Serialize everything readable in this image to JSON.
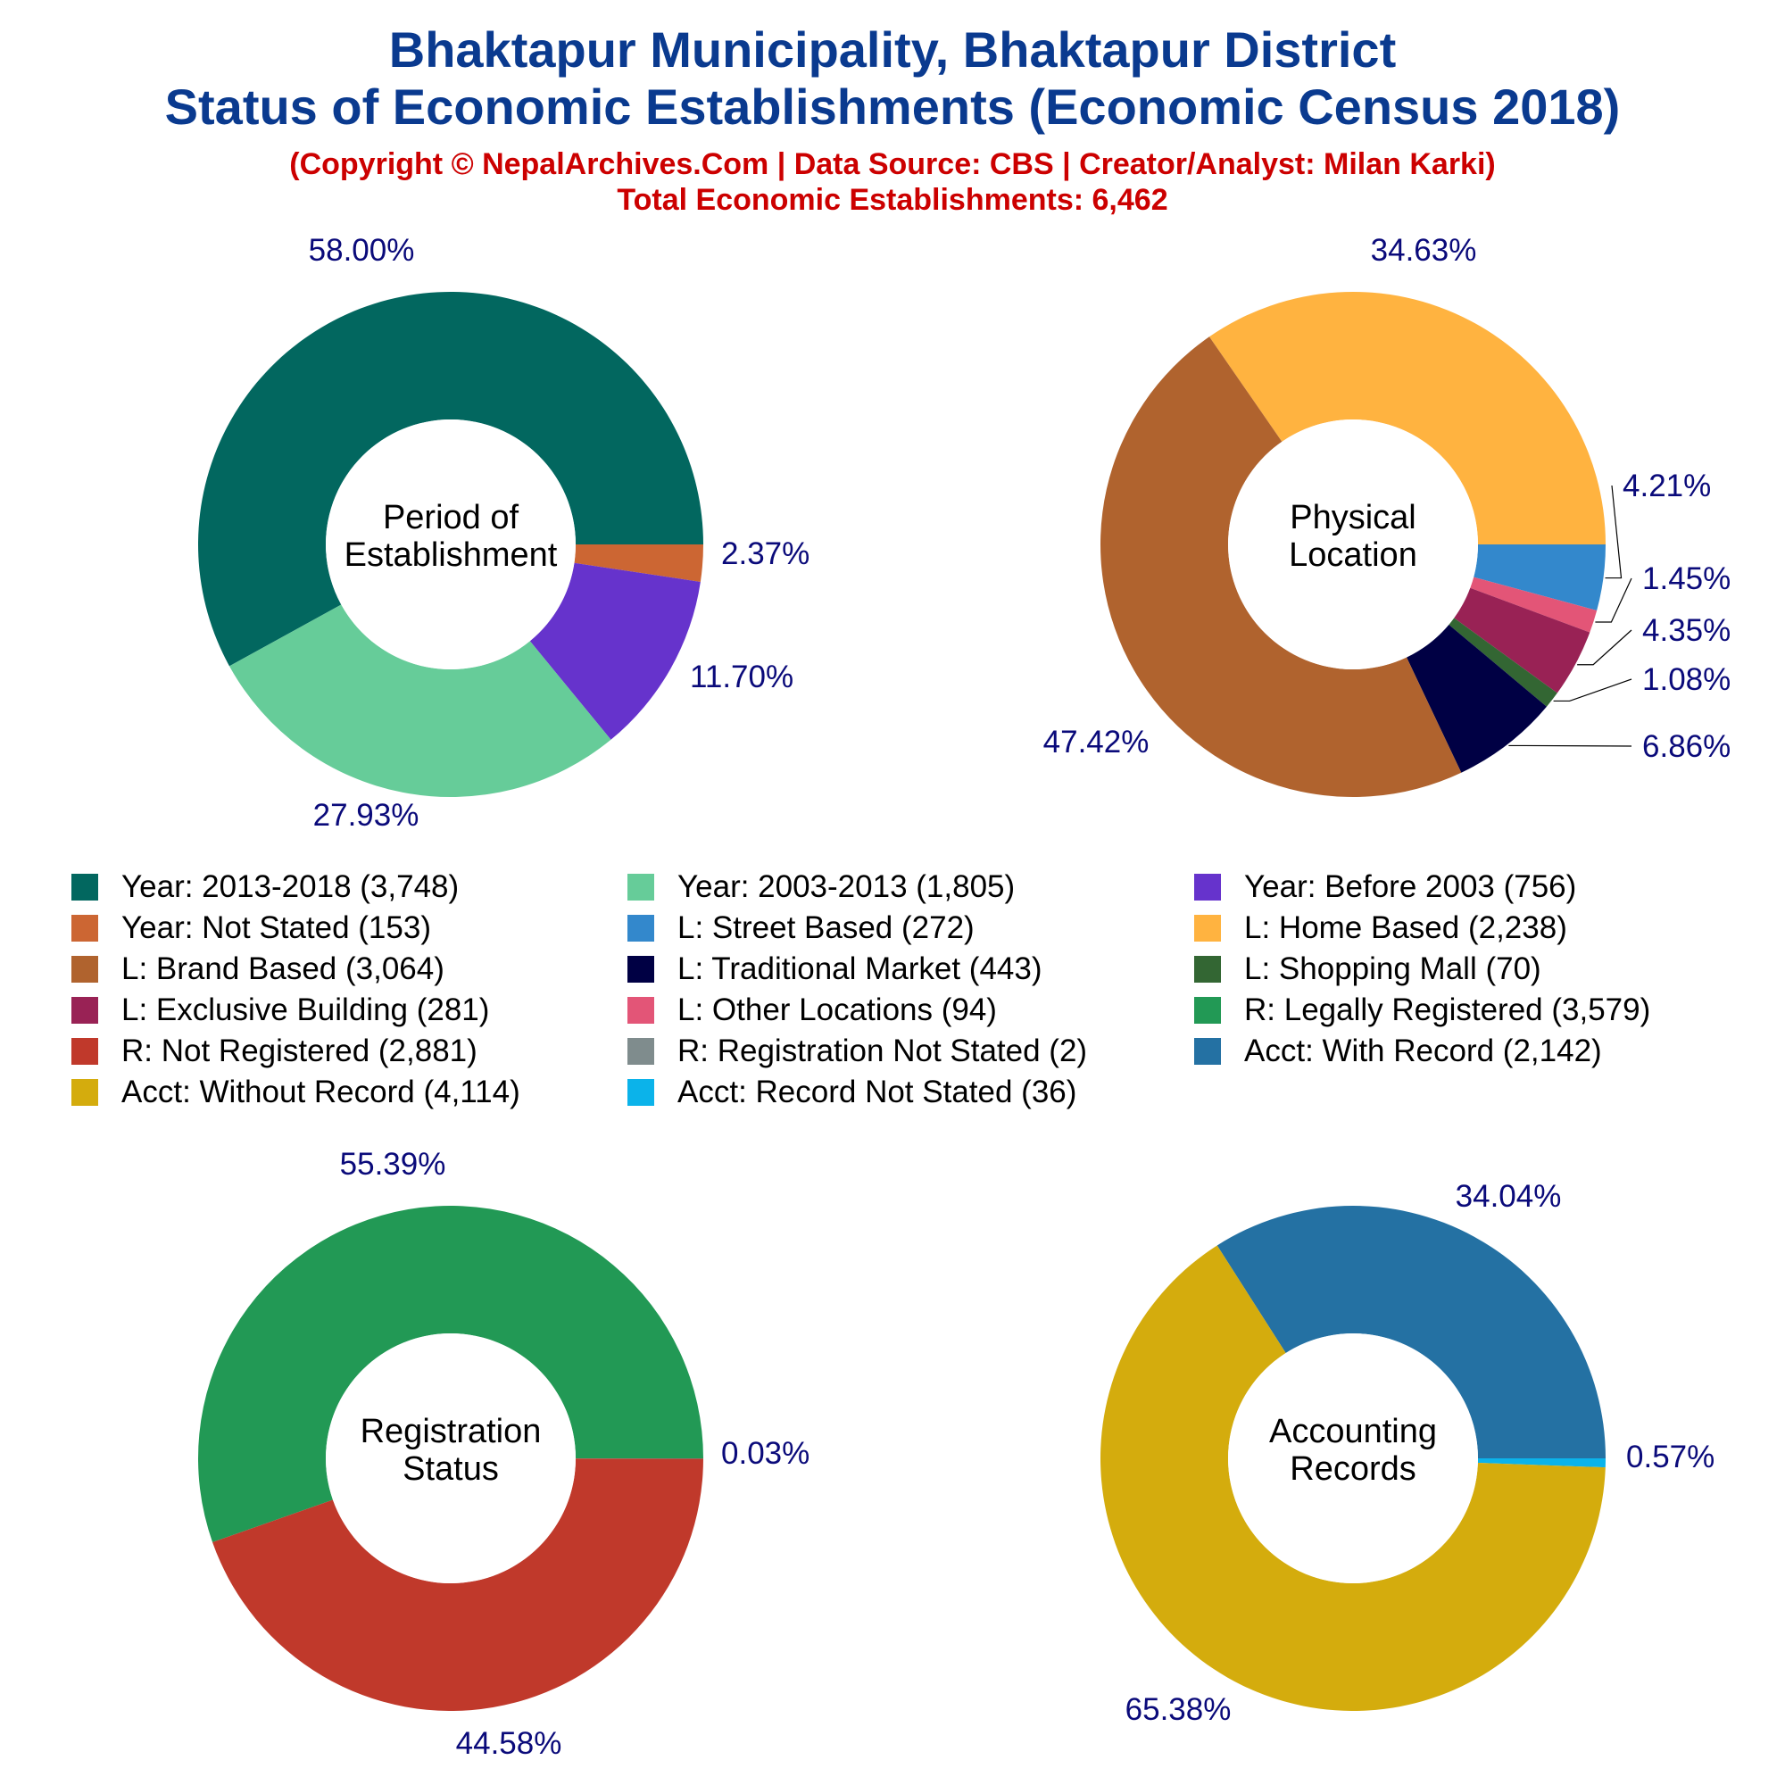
{
  "title": "Bhaktapur Municipality, Bhaktapur District",
  "subtitle": "Status of Economic Establishments (Economic Census 2018)",
  "copyright": "(Copyright © NepalArchives.Com | Data Source: CBS | Creator/Analyst: Milan Karki)",
  "total": "Total Economic Establishments: 6,462",
  "legend": [
    {
      "label": "Year: 2013-2018 (3,748)",
      "color": "#02675f"
    },
    {
      "label": "Year: 2003-2013 (1,805)",
      "color": "#66cc99"
    },
    {
      "label": "Year: Before 2003 (756)",
      "color": "#6633cc"
    },
    {
      "label": "Year: Not Stated (153)",
      "color": "#cc6633"
    },
    {
      "label": "L: Street Based (272)",
      "color": "#3388cc"
    },
    {
      "label": "L: Home Based (2,238)",
      "color": "#ffb340"
    },
    {
      "label": "L: Brand Based (3,064)",
      "color": "#b0632e"
    },
    {
      "label": "L: Traditional Market (443)",
      "color": "#000044"
    },
    {
      "label": "L: Shopping Mall (70)",
      "color": "#336633"
    },
    {
      "label": "L: Exclusive Building (281)",
      "color": "#992255"
    },
    {
      "label": "L: Other Locations (94)",
      "color": "#e35577"
    },
    {
      "label": "R: Legally Registered (3,579)",
      "color": "#229955"
    },
    {
      "label": "R: Not Registered (2,881)",
      "color": "#c0392b"
    },
    {
      "label": "R: Registration Not Stated (2)",
      "color": "#7f8c8d"
    },
    {
      "label": "Acct: With Record (2,142)",
      "color": "#2471a3"
    },
    {
      "label": "Acct: Without Record (4,114)",
      "color": "#d4ac0d"
    },
    {
      "label": "Acct: Record Not Stated (36)",
      "color": "#0bb3ea"
    }
  ],
  "chart_data": [
    {
      "type": "pie",
      "center_label": [
        "Period of",
        "Establishment"
      ],
      "slices": [
        {
          "name": "Year: 2013-2018",
          "value": 3748,
          "percent": "58.00%",
          "color": "#02675f"
        },
        {
          "name": "Year: Not Stated",
          "value": 153,
          "percent": "2.37%",
          "color": "#cc6633"
        },
        {
          "name": "Year: Before 2003",
          "value": 756,
          "percent": "11.70%",
          "color": "#6633cc"
        },
        {
          "name": "Year: 2003-2013",
          "value": 1805,
          "percent": "27.93%",
          "color": "#66cc99"
        }
      ]
    },
    {
      "type": "pie",
      "center_label": [
        "Physical",
        "Location"
      ],
      "slices": [
        {
          "name": "L: Home Based",
          "value": 2238,
          "percent": "34.63%",
          "color": "#ffb340"
        },
        {
          "name": "L: Street Based",
          "value": 272,
          "percent": "4.21%",
          "color": "#3388cc"
        },
        {
          "name": "L: Other Locations",
          "value": 94,
          "percent": "1.45%",
          "color": "#e35577"
        },
        {
          "name": "L: Exclusive Building",
          "value": 281,
          "percent": "4.35%",
          "color": "#992255"
        },
        {
          "name": "L: Shopping Mall",
          "value": 70,
          "percent": "1.08%",
          "color": "#336633"
        },
        {
          "name": "L: Traditional Market",
          "value": 443,
          "percent": "6.86%",
          "color": "#000044"
        },
        {
          "name": "L: Brand Based",
          "value": 3064,
          "percent": "47.42%",
          "color": "#b0632e"
        }
      ]
    },
    {
      "type": "pie",
      "center_label": [
        "Registration",
        "Status"
      ],
      "slices": [
        {
          "name": "R: Legally Registered",
          "value": 3579,
          "percent": "55.39%",
          "color": "#229955"
        },
        {
          "name": "R: Registration Not Stated",
          "value": 2,
          "percent": "0.03%",
          "color": "#7f8c8d"
        },
        {
          "name": "R: Not Registered",
          "value": 2881,
          "percent": "44.58%",
          "color": "#c0392b"
        }
      ]
    },
    {
      "type": "pie",
      "center_label": [
        "Accounting",
        "Records"
      ],
      "slices": [
        {
          "name": "Acct: With Record",
          "value": 2142,
          "percent": "34.04%",
          "color": "#2471a3"
        },
        {
          "name": "Acct: Record Not Stated",
          "value": 36,
          "percent": "0.57%",
          "color": "#0bb3ea"
        },
        {
          "name": "Acct: Without Record",
          "value": 4114,
          "percent": "65.38%",
          "color": "#d4ac0d"
        }
      ]
    }
  ]
}
